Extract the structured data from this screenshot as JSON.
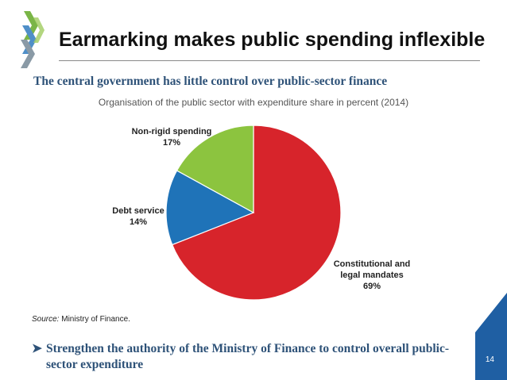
{
  "header": {
    "title": "Earmarking makes public spending inflexible",
    "subtitle": "The central government has little control over public-sector finance"
  },
  "chart_data": {
    "type": "pie",
    "title": "Organisation of the public sector with expenditure share in percent (2014)",
    "slices": [
      {
        "name": "Constitutional and legal mandates",
        "name_lines": [
          "Constitutional and",
          "legal mandates"
        ],
        "value": 69,
        "value_label": "69%",
        "color": "#d7242b"
      },
      {
        "name": "Debt service",
        "name_lines": [
          "Debt service"
        ],
        "value": 14,
        "value_label": "14%",
        "color": "#1f73b8"
      },
      {
        "name": "Non-rigid spending",
        "name_lines": [
          "Non-rigid spending"
        ],
        "value": 17,
        "value_label": "17%",
        "color": "#8cc43f"
      }
    ],
    "start": "12 o'clock",
    "direction": "clockwise"
  },
  "source": {
    "label": "Source:",
    "text": " Ministry of Finance."
  },
  "bullet": {
    "text": "Strengthen the authority of the Ministry of Finance to control overall public-sector expenditure"
  },
  "footer": {
    "page_number": "14",
    "corner_color": "#1f5fa3"
  }
}
